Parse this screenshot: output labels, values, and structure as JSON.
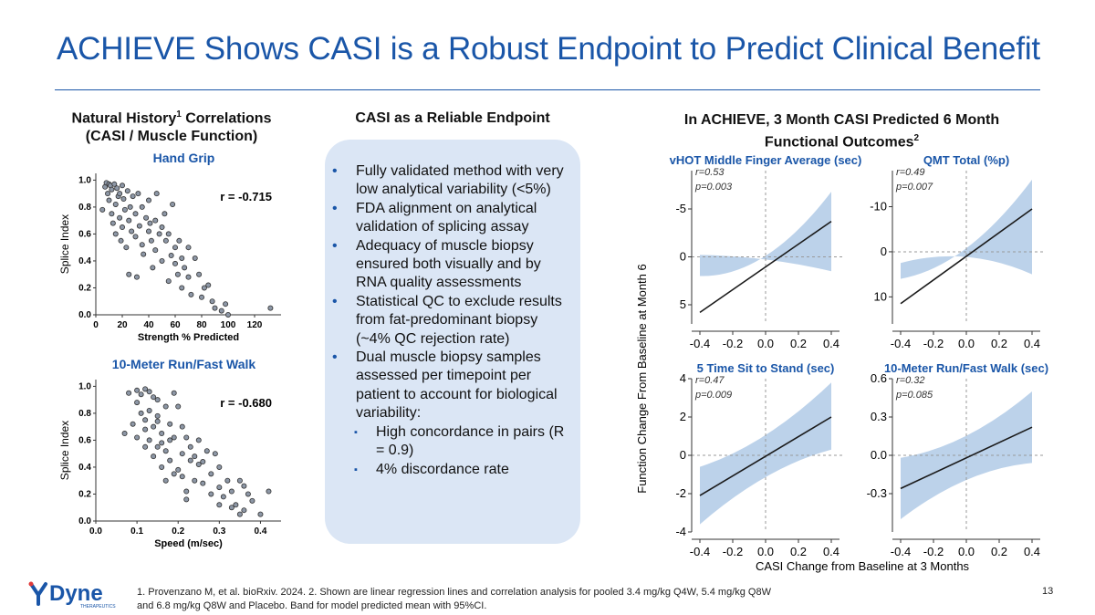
{
  "slide": {
    "title": "ACHIEVE Shows CASI is a Robust Endpoint to Predict Clinical Benefit",
    "page_number": "13"
  },
  "left_panel": {
    "heading_line1": "Natural History",
    "heading_sup": "1",
    "heading_line1_end": " Correlations",
    "heading_line2": "(CASI / Muscle Function)"
  },
  "middle_panel": {
    "heading": "CASI as a Reliable Endpoint",
    "bullets": [
      "Fully validated method with very low analytical variability (<5%)",
      "FDA alignment on analytical validation of splicing assay",
      "Adequacy of muscle biopsy ensured both visually and by RNA quality assessments",
      "Statistical QC to exclude results from fat-predominant biopsy (~4% QC rejection rate)",
      "Dual muscle biopsy samples assessed per timepoint per patient to account for biological variability:"
    ],
    "sub_bullets": [
      "High concordance in pairs (R = 0.9)",
      "4% discordance rate"
    ],
    "bullet_glyph": "•",
    "sub_bullet_glyph": "▪"
  },
  "right_panel": {
    "heading_line1": "In ACHIEVE, 3 Month CASI Predicted 6 Month",
    "heading_line2": "Functional Outcomes",
    "heading_sup": "2",
    "y_label": "Function Change From Baseline at Month 6",
    "x_label": "CASI Change from Baseline at 3 Months"
  },
  "footnote": {
    "line1": "1. Provenzano M, et al. bioRxiv. 2024. 2. Shown are linear regression lines and correlation analysis for pooled 3.4 mg/kg Q4W, 5.4 mg/kg Q8W",
    "line2": "and 6.8 mg/kg Q8W and Placebo. Band for model predicted mean with 95%CI."
  },
  "logo": {
    "wordmark": "Dyne",
    "tagline": "THERAPEUTICS",
    "mark_color": "#1a56a8",
    "accent_color": "#e03a3a"
  },
  "colors": {
    "title_blue": "#1a56a8",
    "band_blue": "#bcd2ea",
    "box_fill": "#dbe6f5",
    "point_fill": "#8d97a6"
  },
  "chart_data": [
    {
      "type": "scatter",
      "title": "Hand Grip",
      "annotation": "r = -0.715",
      "xlabel": "Strength % Predicted",
      "ylabel": "Splice Index",
      "xlim": [
        0,
        140
      ],
      "ylim": [
        0,
        1.05
      ],
      "xticks": [
        "0",
        "20",
        "40",
        "60",
        "80",
        "100",
        "120"
      ],
      "yticks": [
        "0.0",
        "0.2",
        "0.4",
        "0.6",
        "0.8",
        "1.0"
      ],
      "x": [
        5,
        7,
        8,
        9,
        10,
        10,
        11,
        12,
        12,
        13,
        14,
        15,
        15,
        16,
        17,
        18,
        18,
        19,
        20,
        20,
        21,
        22,
        23,
        24,
        25,
        25,
        26,
        27,
        28,
        30,
        30,
        31,
        32,
        33,
        35,
        35,
        36,
        38,
        40,
        40,
        41,
        42,
        43,
        45,
        45,
        46,
        48,
        50,
        50,
        52,
        53,
        55,
        55,
        57,
        58,
        60,
        60,
        62,
        63,
        65,
        65,
        67,
        70,
        70,
        72,
        75,
        78,
        80,
        82,
        85,
        88,
        90,
        95,
        98,
        100,
        132
      ],
      "y": [
        0.78,
        0.95,
        0.98,
        0.9,
        0.97,
        0.85,
        0.96,
        0.75,
        0.93,
        0.68,
        0.97,
        0.6,
        0.82,
        0.94,
        0.88,
        0.72,
        0.9,
        0.55,
        0.96,
        0.65,
        0.86,
        0.78,
        0.5,
        0.92,
        0.7,
        0.3,
        0.8,
        0.62,
        0.88,
        0.58,
        0.75,
        0.28,
        0.9,
        0.66,
        0.52,
        0.8,
        0.45,
        0.72,
        0.62,
        0.85,
        0.68,
        0.55,
        0.35,
        0.7,
        0.48,
        0.9,
        0.6,
        0.65,
        0.4,
        0.75,
        0.55,
        0.25,
        0.6,
        0.44,
        0.82,
        0.38,
        0.5,
        0.3,
        0.55,
        0.42,
        0.2,
        0.35,
        0.28,
        0.5,
        0.15,
        0.42,
        0.3,
        0.13,
        0.2,
        0.22,
        0.1,
        0.05,
        0.03,
        0.08,
        0.0,
        0.05
      ]
    },
    {
      "type": "scatter",
      "title": "10-Meter Run/Fast Walk",
      "annotation": "r = -0.680",
      "xlabel": "Speed (m/sec)",
      "ylabel": "Splice Index",
      "xlim": [
        0,
        0.45
      ],
      "ylim": [
        0,
        1.05
      ],
      "xticks": [
        "0.0",
        "0.1",
        "0.2",
        "0.3",
        "0.4"
      ],
      "yticks": [
        "0.0",
        "0.2",
        "0.4",
        "0.6",
        "0.8",
        "1.0"
      ],
      "x": [
        0.07,
        0.08,
        0.09,
        0.1,
        0.1,
        0.11,
        0.11,
        0.12,
        0.12,
        0.12,
        0.13,
        0.13,
        0.14,
        0.14,
        0.14,
        0.15,
        0.15,
        0.15,
        0.16,
        0.16,
        0.17,
        0.17,
        0.17,
        0.18,
        0.18,
        0.19,
        0.19,
        0.2,
        0.2,
        0.21,
        0.21,
        0.22,
        0.22,
        0.23,
        0.23,
        0.24,
        0.25,
        0.25,
        0.26,
        0.27,
        0.28,
        0.28,
        0.29,
        0.3,
        0.3,
        0.31,
        0.32,
        0.33,
        0.34,
        0.35,
        0.36,
        0.37,
        0.38,
        0.4,
        0.42,
        0.1,
        0.12,
        0.16,
        0.19,
        0.22,
        0.26,
        0.33,
        0.36,
        0.13,
        0.15,
        0.18,
        0.21,
        0.24,
        0.3,
        0.35
      ],
      "y": [
        0.65,
        0.95,
        0.72,
        0.97,
        0.62,
        0.94,
        0.8,
        0.98,
        0.75,
        0.55,
        0.96,
        0.6,
        0.92,
        0.7,
        0.48,
        0.9,
        0.55,
        0.78,
        0.65,
        0.4,
        0.85,
        0.52,
        0.3,
        0.72,
        0.45,
        0.95,
        0.62,
        0.85,
        0.38,
        0.5,
        0.7,
        0.22,
        0.62,
        0.45,
        0.55,
        0.3,
        0.6,
        0.42,
        0.28,
        0.52,
        0.35,
        0.2,
        0.5,
        0.25,
        0.4,
        0.18,
        0.3,
        0.22,
        0.12,
        0.3,
        0.08,
        0.2,
        0.15,
        0.05,
        0.22,
        0.88,
        0.68,
        0.58,
        0.35,
        0.16,
        0.44,
        0.1,
        0.26,
        0.82,
        0.74,
        0.6,
        0.33,
        0.48,
        0.12,
        0.05
      ]
    },
    {
      "type": "line",
      "title": "vHOT Middle Finger Average (sec)",
      "annotations": [
        "r=0.53",
        "p=0.003"
      ],
      "xlim": [
        -0.45,
        0.45
      ],
      "ylim": [
        -9,
        7
      ],
      "y_reversed": true,
      "xticks": [
        "-0.4",
        "-0.2",
        "0.0",
        "0.2",
        "0.4"
      ],
      "yticks": [
        "5",
        "0",
        "-5"
      ],
      "x": [
        -0.4,
        0.4
      ],
      "fit": [
        5.8,
        -3.7
      ],
      "band_lower": [
        -0.2,
        1.5
      ],
      "band_upper": [
        2.0,
        -6.8
      ]
    },
    {
      "type": "line",
      "title": "QMT Total (%p)",
      "annotations": [
        "r=0.49",
        "p=0.007"
      ],
      "xlim": [
        -0.45,
        0.45
      ],
      "ylim": [
        -18,
        16
      ],
      "xticks": [
        "-0.4",
        "-0.2",
        "0.0",
        "0.2",
        "0.4"
      ],
      "yticks": [
        "-10",
        "0",
        "10"
      ],
      "y_reversed": true,
      "x": [
        -0.4,
        0.4
      ],
      "fit": [
        11.5,
        -9.5
      ],
      "band_lower": [
        2.5,
        5
      ],
      "band_upper": [
        6,
        -16
      ]
    },
    {
      "type": "line",
      "title": "5 Time Sit to Stand (sec)",
      "annotations": [
        "r=0.47",
        "p=0.009"
      ],
      "xlim": [
        -0.45,
        0.45
      ],
      "ylim": [
        -4,
        4
      ],
      "xticks": [
        "-0.4",
        "-0.2",
        "0.0",
        "0.2",
        "0.4"
      ],
      "yticks": [
        "4",
        "2",
        "0",
        "-2",
        "-4"
      ],
      "x": [
        -0.4,
        0.4
      ],
      "fit": [
        -2.1,
        2.0
      ],
      "band_lower": [
        -3.6,
        0.3
      ],
      "band_upper": [
        -0.6,
        3.8
      ]
    },
    {
      "type": "line",
      "title": "10-Meter Run/Fast Walk (sec)",
      "annotations": [
        "r=0.32",
        "p=0.085"
      ],
      "xlim": [
        -0.45,
        0.45
      ],
      "ylim": [
        -0.6,
        0.6
      ],
      "xticks": [
        "-0.4",
        "-0.2",
        "0.0",
        "0.2",
        "0.4"
      ],
      "yticks": [
        "0.6",
        "0.3",
        "0.0",
        "-0.3"
      ],
      "x": [
        -0.4,
        0.4
      ],
      "fit": [
        -0.26,
        0.22
      ],
      "band_lower": [
        -0.5,
        -0.06
      ],
      "band_upper": [
        -0.02,
        0.5
      ]
    }
  ]
}
